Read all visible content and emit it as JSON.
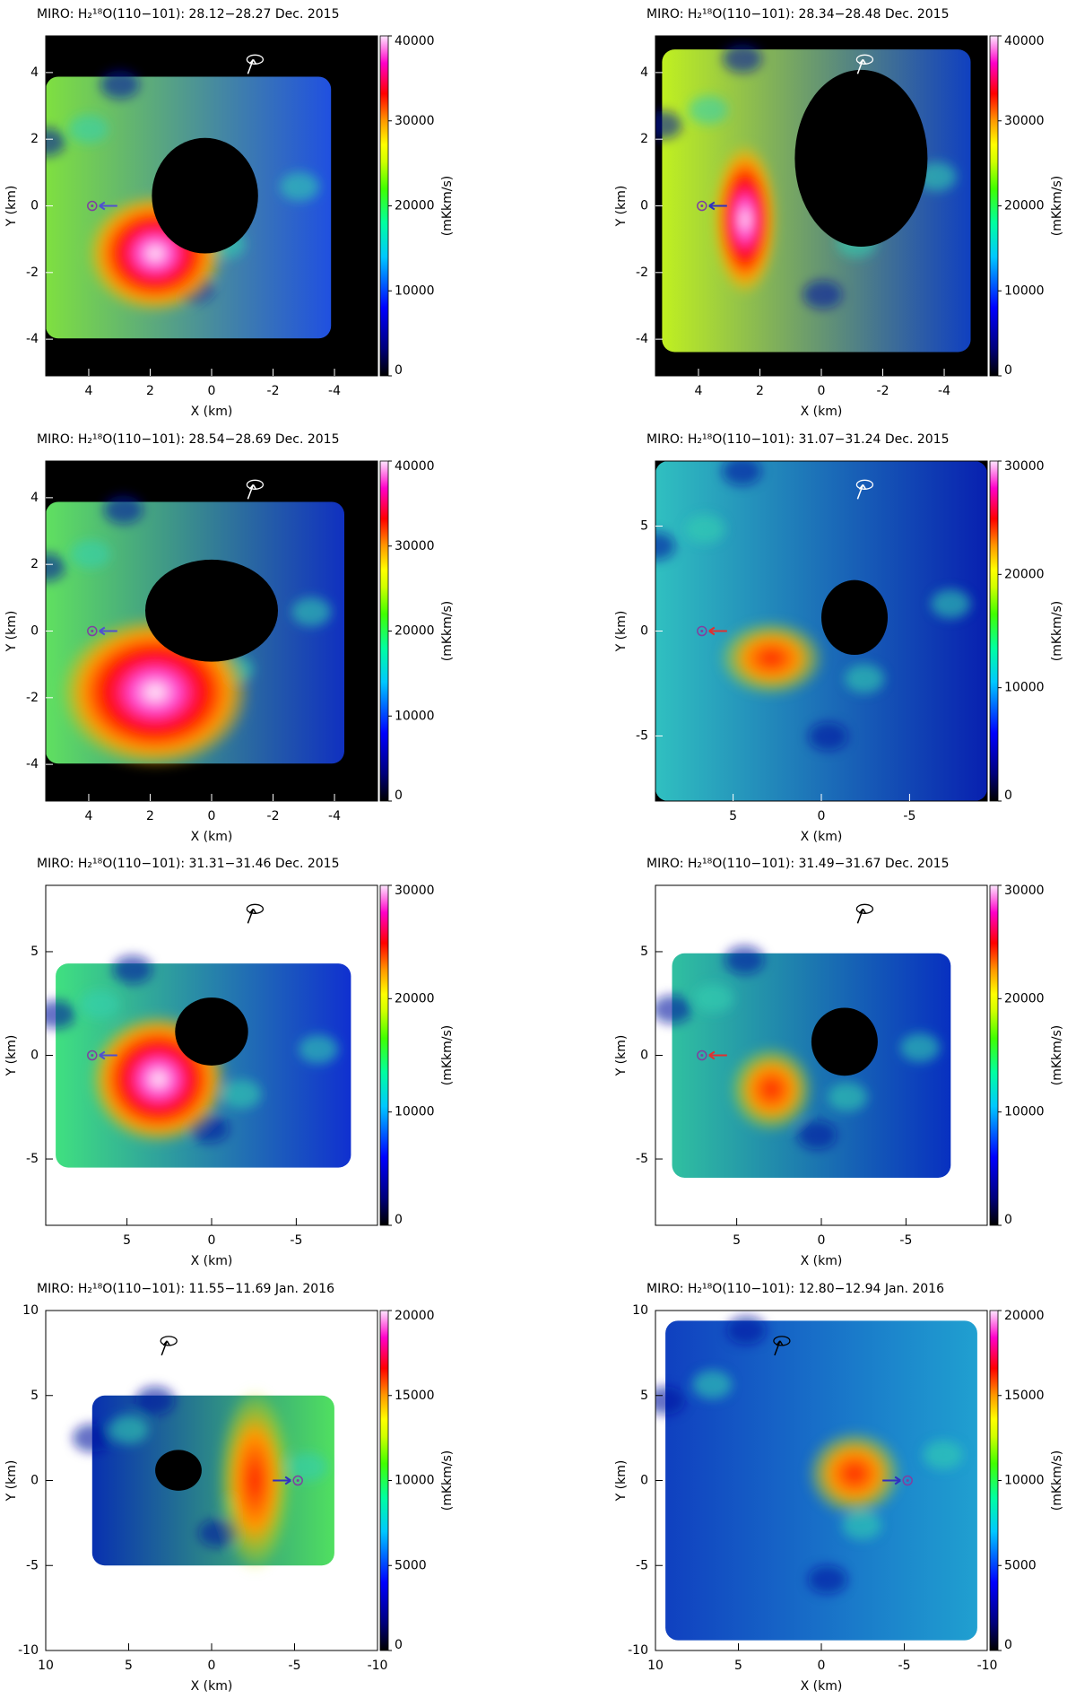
{
  "chart_data": [
    {
      "type": "heatmap",
      "title": "MIRO: H₂¹⁸O(110−101): 28.12−28.27 Dec. 2015",
      "xlabel": "X (km)",
      "ylabel": "Y (km)",
      "xlim": [
        5.4,
        -5.4
      ],
      "ylim": [
        -5.1,
        5.1
      ],
      "xticks": [
        4,
        2,
        0,
        -2,
        -4
      ],
      "yticks": [
        -4,
        -2,
        0,
        2,
        4
      ],
      "colorbar": {
        "label": "(mKkm/s)",
        "lim": [
          0,
          40000
        ],
        "ticks": [
          0,
          10000,
          20000,
          30000,
          40000
        ]
      }
    },
    {
      "type": "heatmap",
      "title": "MIRO: H₂¹⁸O(110−101): 28.34−28.48 Dec. 2015",
      "xlabel": "X (km)",
      "ylabel": "Y (km)",
      "xlim": [
        5.4,
        -5.4
      ],
      "ylim": [
        -5.1,
        5.1
      ],
      "xticks": [
        4,
        2,
        0,
        -2,
        -4
      ],
      "yticks": [
        -4,
        -2,
        0,
        2,
        4
      ],
      "colorbar": {
        "label": "(mKkm/s)",
        "lim": [
          0,
          40000
        ],
        "ticks": [
          0,
          10000,
          20000,
          30000,
          40000
        ]
      }
    },
    {
      "type": "heatmap",
      "title": "MIRO: H₂¹⁸O(110−101): 28.54−28.69 Dec. 2015",
      "xlabel": "X (km)",
      "ylabel": "Y (km)",
      "xlim": [
        5.4,
        -5.4
      ],
      "ylim": [
        -5.1,
        5.1
      ],
      "xticks": [
        4,
        2,
        0,
        -2,
        -4
      ],
      "yticks": [
        -4,
        -2,
        0,
        2,
        4
      ],
      "colorbar": {
        "label": "(mKkm/s)",
        "lim": [
          0,
          40000
        ],
        "ticks": [
          0,
          10000,
          20000,
          30000,
          40000
        ]
      }
    },
    {
      "type": "heatmap",
      "title": "MIRO: H₂¹⁸O(110−101): 31.07−31.24 Dec. 2015",
      "xlabel": "X (km)",
      "ylabel": "Y (km)",
      "xlim": [
        9.4,
        -9.4
      ],
      "ylim": [
        -8.1,
        8.1
      ],
      "xticks": [
        5,
        0,
        -5
      ],
      "yticks": [
        -5,
        0,
        5
      ],
      "colorbar": {
        "label": "(mKkm/s)",
        "lim": [
          0,
          30000
        ],
        "ticks": [
          0,
          10000,
          20000,
          30000
        ]
      }
    },
    {
      "type": "heatmap",
      "title": "MIRO: H₂¹⁸O(110−101): 31.31−31.46 Dec. 2015",
      "xlabel": "X (km)",
      "ylabel": "Y (km)",
      "xlim": [
        9.8,
        -9.8
      ],
      "ylim": [
        -8.2,
        8.2
      ],
      "xticks": [
        5,
        0,
        -5
      ],
      "yticks": [
        -5,
        0,
        5
      ],
      "colorbar": {
        "label": "(mKkm/s)",
        "lim": [
          0,
          30000
        ],
        "ticks": [
          0,
          10000,
          20000,
          30000
        ]
      }
    },
    {
      "type": "heatmap",
      "title": "MIRO: H₂¹⁸O(110−101): 31.49−31.67 Dec. 2015",
      "xlabel": "X (km)",
      "ylabel": "Y (km)",
      "xlim": [
        9.8,
        -9.8
      ],
      "ylim": [
        -8.2,
        8.2
      ],
      "xticks": [
        5,
        0,
        -5
      ],
      "yticks": [
        -5,
        0,
        5
      ],
      "colorbar": {
        "label": "(mKkm/s)",
        "lim": [
          0,
          30000
        ],
        "ticks": [
          0,
          10000,
          20000,
          30000
        ]
      }
    },
    {
      "type": "heatmap",
      "title": "MIRO: H₂¹⁸O(110−101): 11.55−11.69 Jan. 2016",
      "xlabel": "X (km)",
      "ylabel": "Y (km)",
      "xlim": [
        10,
        -10
      ],
      "ylim": [
        -10,
        10
      ],
      "xticks": [
        10,
        5,
        0,
        -5,
        -10
      ],
      "yticks": [
        -10,
        -5,
        0,
        5,
        10
      ],
      "colorbar": {
        "label": "(mKkm/s)",
        "lim": [
          0,
          20000
        ],
        "ticks": [
          0,
          5000,
          10000,
          15000,
          20000
        ]
      }
    },
    {
      "type": "heatmap",
      "title": "MIRO: H₂¹⁸O(110−101): 12.80−12.94 Jan. 2016",
      "xlabel": "X (km)",
      "ylabel": "Y (km)",
      "xlim": [
        10,
        -10
      ],
      "ylim": [
        -10,
        10
      ],
      "xticks": [
        10,
        5,
        0,
        -5,
        -10
      ],
      "yticks": [
        -10,
        -5,
        0,
        5,
        10
      ],
      "colorbar": {
        "label": "(mKkm/s)",
        "lim": [
          0,
          20000
        ],
        "ticks": [
          0,
          5000,
          10000,
          15000,
          20000
        ]
      }
    }
  ]
}
